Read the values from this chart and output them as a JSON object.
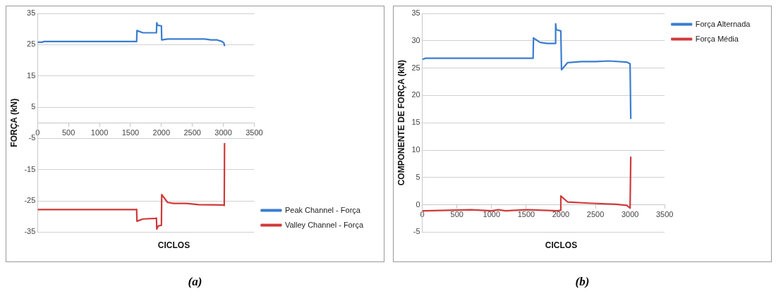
{
  "chart_data": [
    {
      "type": "line",
      "ylabel": "FORÇA (kN)",
      "xlabel": "CICLOS",
      "annotations": [
        "(a)"
      ],
      "xlim": [
        0,
        3500
      ],
      "xticks": [
        0,
        500,
        1000,
        1500,
        2000,
        2500,
        3000,
        3500
      ],
      "ylim": [
        -35,
        35
      ],
      "yticks": [
        -35,
        -25,
        -15,
        -5,
        5,
        15,
        25,
        35
      ],
      "grid": "y",
      "legend": "bottom right",
      "series": [
        {
          "name": "Peak Channel - Força",
          "color": "#3a7dd0",
          "x": [
            0,
            80,
            100,
            1600,
            1605,
            1700,
            1920,
            1925,
            1940,
            2000,
            2005,
            2100,
            2700,
            2800,
            2900,
            2980,
            3010,
            3020
          ],
          "values": [
            25.8,
            25.8,
            26,
            26,
            29.5,
            28.8,
            28.8,
            32,
            31.2,
            31,
            26.5,
            26.8,
            26.8,
            26.5,
            26.5,
            26,
            25.5,
            24.5
          ]
        },
        {
          "name": "Valley Channel - Força",
          "color": "#d03a3a",
          "x": [
            0,
            80,
            100,
            1580,
            1600,
            1605,
            1700,
            1900,
            1920,
            1925,
            1950,
            2000,
            2005,
            2100,
            2200,
            2400,
            2600,
            3000,
            3015,
            3020
          ],
          "values": [
            -27.8,
            -27.8,
            -27.8,
            -27.8,
            -27.7,
            -31.5,
            -30.8,
            -30.6,
            -30.5,
            -34,
            -33,
            -32.8,
            -23,
            -25.5,
            -25.8,
            -25.8,
            -26.2,
            -26.3,
            -26.5,
            -6.5
          ]
        }
      ]
    },
    {
      "type": "line",
      "ylabel": "COMPONENTE DE FORÇA (kN)",
      "xlabel": "CICLOS",
      "annotations": [
        "(b)"
      ],
      "xlim": [
        0,
        3500
      ],
      "xticks": [
        0,
        500,
        1000,
        1500,
        2000,
        2500,
        3000,
        3500
      ],
      "ylim": [
        -5,
        35
      ],
      "yticks": [
        -5,
        0,
        5,
        10,
        15,
        20,
        25,
        30,
        35
      ],
      "grid": "y",
      "legend": "top right",
      "series": [
        {
          "name": "Força Alternada",
          "color": "#3a7dd0",
          "x": [
            0,
            50,
            1600,
            1605,
            1700,
            1800,
            1920,
            1925,
            1935,
            2000,
            2010,
            2100,
            2300,
            2500,
            2700,
            2950,
            3000,
            3010
          ],
          "values": [
            26.6,
            26.8,
            26.8,
            30.5,
            29.7,
            29.5,
            29.5,
            33.1,
            32,
            31.8,
            24.7,
            26,
            26.2,
            26.2,
            26.3,
            26.1,
            25.8,
            15.7
          ]
        },
        {
          "name": "Força Média",
          "color": "#d03a3a",
          "x": [
            0,
            50,
            700,
            1000,
            1100,
            1200,
            1500,
            1950,
            1995,
            2000,
            2100,
            2400,
            2800,
            2950,
            3000,
            3010
          ],
          "values": [
            -1.1,
            -1.1,
            -0.9,
            -1.1,
            -0.9,
            -1.1,
            -0.9,
            -1.1,
            -1,
            1.6,
            0.5,
            0.3,
            0.1,
            -0.1,
            -0.6,
            8.8
          ]
        }
      ]
    }
  ]
}
